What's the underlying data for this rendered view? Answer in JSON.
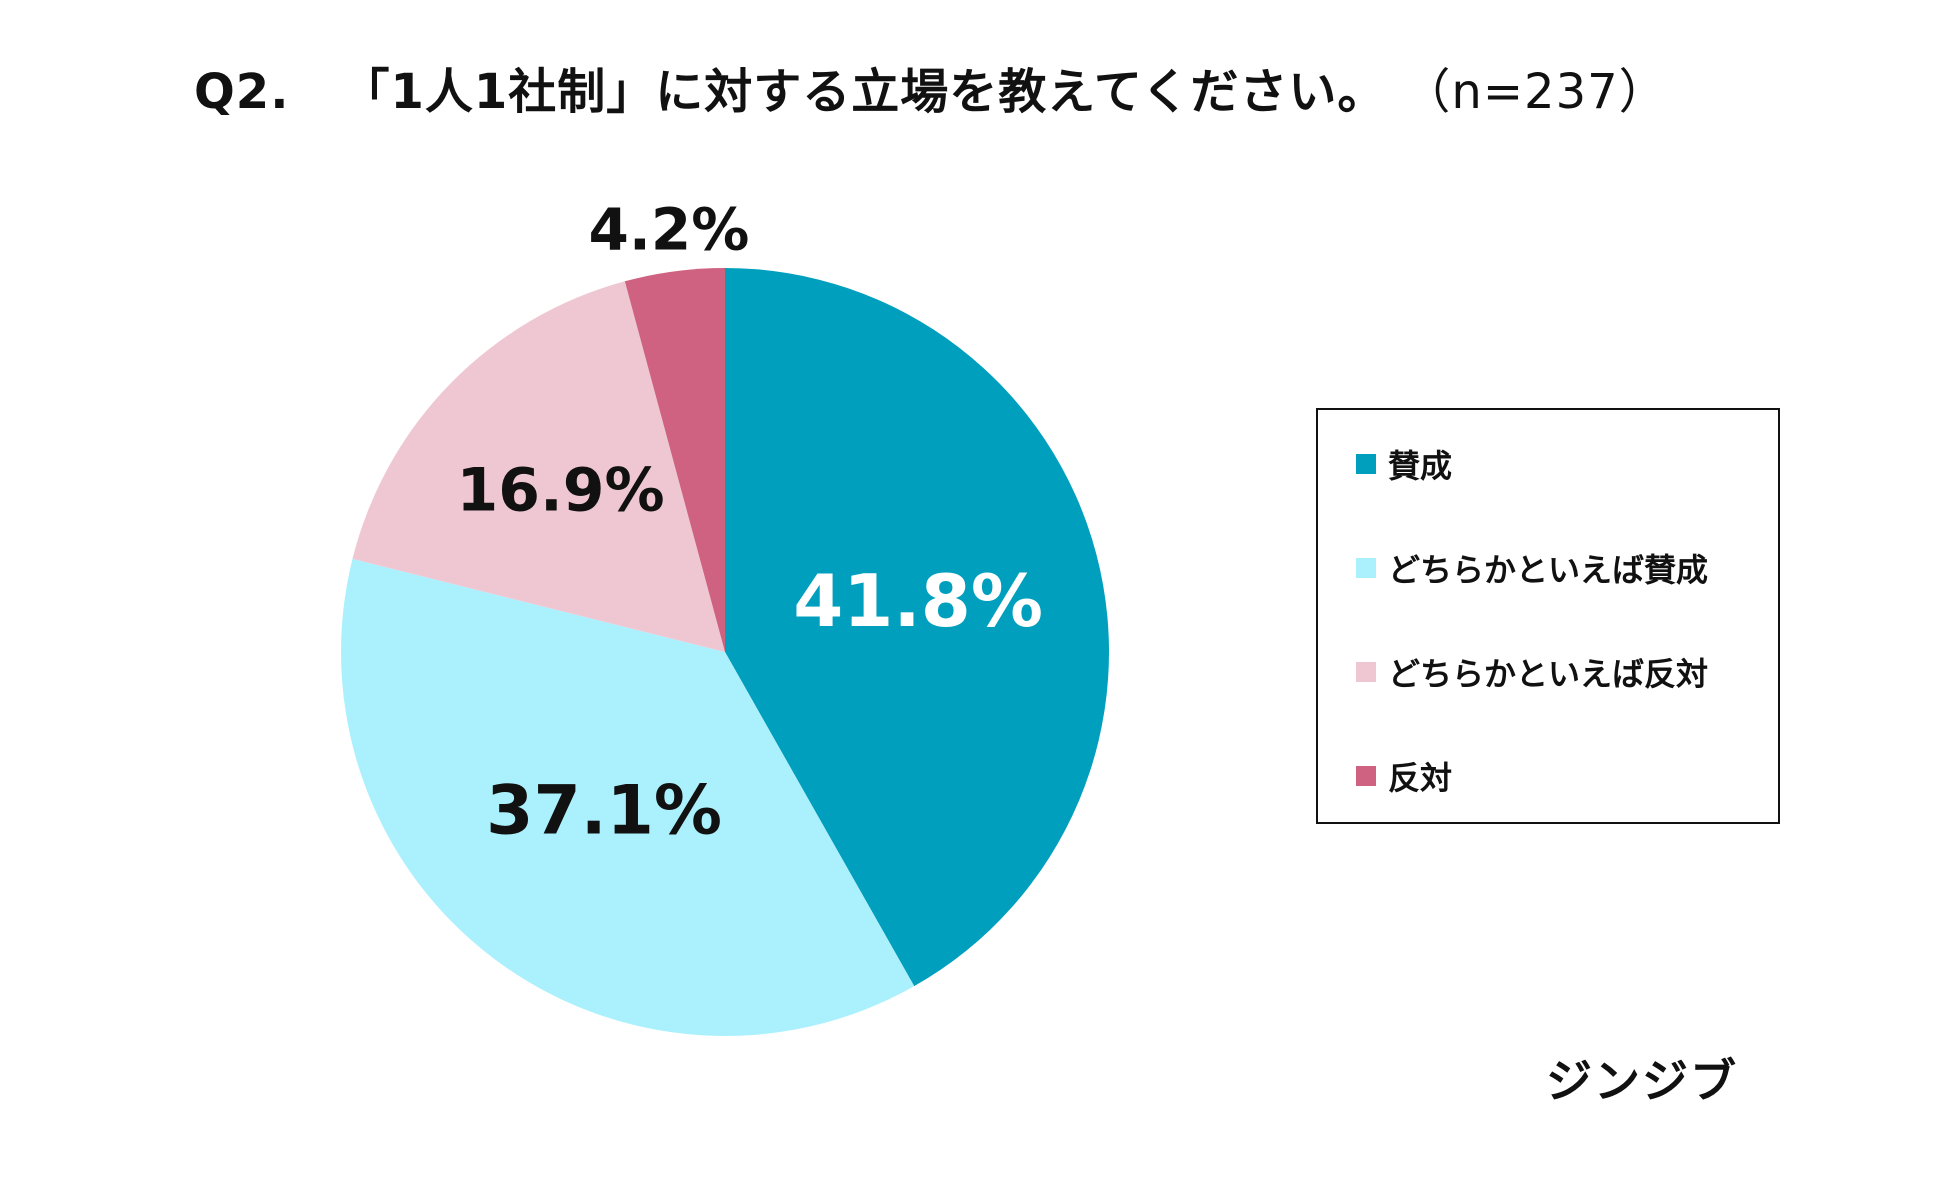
{
  "title": {
    "question_number": "Q2.",
    "question": "「1人1社制」に対する立場を教えてください。",
    "sample": "（n=237）"
  },
  "source": "ジンジブ",
  "chart_data": {
    "type": "pie",
    "title": "Q2.　「1人1社制」に対する立場を教えてください。（n=237）",
    "n": 237,
    "unit": "%",
    "categories": [
      "賛成",
      "どちらかといえば賛成",
      "どちらかといえば反対",
      "反対"
    ],
    "values": [
      41.8,
      37.1,
      16.9,
      4.2
    ],
    "labels": [
      "41.8%",
      "37.1%",
      "16.9%",
      "4.2%"
    ],
    "colors": [
      "#009fbd",
      "#abf1fd",
      "#efc7d2",
      "#ce6280"
    ],
    "label_colors": [
      "#ffffff",
      "#111111",
      "#111111",
      "#111111"
    ],
    "start": "12 o'clock",
    "direction": "clockwise",
    "legend": {
      "placement": "right",
      "entries": [
        "賛成",
        "どちらかといえば賛成",
        "どちらかといえば反対",
        "反対"
      ]
    }
  }
}
